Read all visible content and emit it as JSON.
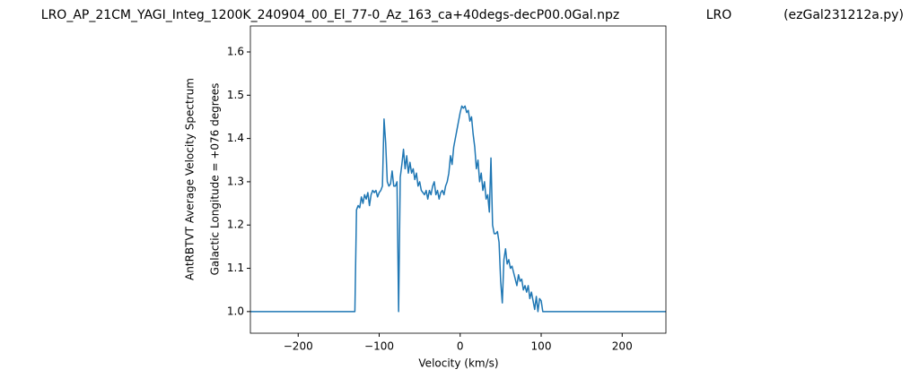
{
  "chart_data": {
    "type": "line",
    "title": "LRO_AP_21CM_YAGI_Integ_1200K_240904_00_El_77-0_Az_163_ca+40degs-decP00.0Gal.npz",
    "title_extra": [
      "LRO",
      "(ezGal231212a.py)"
    ],
    "ylabel": [
      "AntRBTVT Average Velocity Spectrum",
      "Galactic Longitude = +076 degrees"
    ],
    "xlabel": "Velocity (km/s)",
    "xlim": [
      -259,
      254
    ],
    "ylim": [
      0.95,
      1.66
    ],
    "xticks": [
      {
        "value": -200,
        "label": "−200"
      },
      {
        "value": -100,
        "label": "−100"
      },
      0,
      100,
      200
    ],
    "yticks": [
      {
        "value": 1,
        "label": "1.0"
      },
      {
        "value": 1.1,
        "label": "1.1"
      },
      {
        "value": 1.2,
        "label": "1.2"
      },
      {
        "value": 1.3,
        "label": "1.3"
      },
      {
        "value": 1.4,
        "label": "1.4"
      },
      {
        "value": 1.5,
        "label": "1.5"
      },
      {
        "value": 1.6,
        "label": "1.6"
      }
    ],
    "series": [
      {
        "color": "#1f77b4",
        "x": [
          -259,
          -130,
          -128,
          -126,
          -124,
          -122,
          -120,
          -118,
          -116,
          -114,
          -112,
          -110,
          -108,
          -106,
          -104,
          -102,
          -100,
          -98,
          -96,
          -94,
          -92,
          -90,
          -88,
          -86,
          -84,
          -82,
          -80,
          -78,
          -76,
          -74,
          -72,
          -70,
          -68,
          -66,
          -64,
          -62,
          -60,
          -58,
          -56,
          -54,
          -52,
          -50,
          -48,
          -46,
          -44,
          -42,
          -40,
          -38,
          -36,
          -34,
          -32,
          -30,
          -28,
          -26,
          -24,
          -22,
          -20,
          -18,
          -16,
          -14,
          -12,
          -10,
          -8,
          -6,
          -4,
          -2,
          0,
          2,
          4,
          6,
          8,
          10,
          12,
          14,
          16,
          18,
          20,
          22,
          24,
          26,
          28,
          30,
          32,
          34,
          36,
          38,
          40,
          42,
          44,
          46,
          48,
          50,
          52,
          54,
          56,
          58,
          60,
          62,
          64,
          66,
          68,
          70,
          72,
          74,
          76,
          78,
          80,
          82,
          84,
          86,
          88,
          90,
          92,
          94,
          96,
          98,
          100,
          102,
          104,
          106,
          254
        ],
        "values": [
          1.0,
          1.0,
          1.235,
          1.245,
          1.24,
          1.265,
          1.25,
          1.27,
          1.26,
          1.275,
          1.245,
          1.27,
          1.28,
          1.275,
          1.28,
          1.265,
          1.275,
          1.28,
          1.29,
          1.445,
          1.39,
          1.3,
          1.29,
          1.295,
          1.325,
          1.29,
          1.29,
          1.3,
          1.0,
          1.31,
          1.34,
          1.375,
          1.33,
          1.36,
          1.32,
          1.345,
          1.32,
          1.33,
          1.305,
          1.32,
          1.29,
          1.3,
          1.28,
          1.275,
          1.27,
          1.28,
          1.26,
          1.28,
          1.27,
          1.29,
          1.3,
          1.27,
          1.28,
          1.26,
          1.275,
          1.28,
          1.27,
          1.29,
          1.3,
          1.32,
          1.36,
          1.34,
          1.38,
          1.4,
          1.42,
          1.44,
          1.46,
          1.475,
          1.47,
          1.475,
          1.46,
          1.465,
          1.44,
          1.45,
          1.41,
          1.38,
          1.33,
          1.35,
          1.3,
          1.32,
          1.28,
          1.3,
          1.26,
          1.27,
          1.23,
          1.355,
          1.2,
          1.18,
          1.18,
          1.185,
          1.16,
          1.07,
          1.02,
          1.12,
          1.145,
          1.11,
          1.12,
          1.1,
          1.105,
          1.09,
          1.075,
          1.06,
          1.085,
          1.07,
          1.075,
          1.05,
          1.06,
          1.045,
          1.06,
          1.03,
          1.045,
          1.025,
          1.005,
          1.035,
          1.0,
          1.03,
          1.025,
          1.0,
          1.0,
          1.0,
          1.0
        ]
      }
    ]
  }
}
